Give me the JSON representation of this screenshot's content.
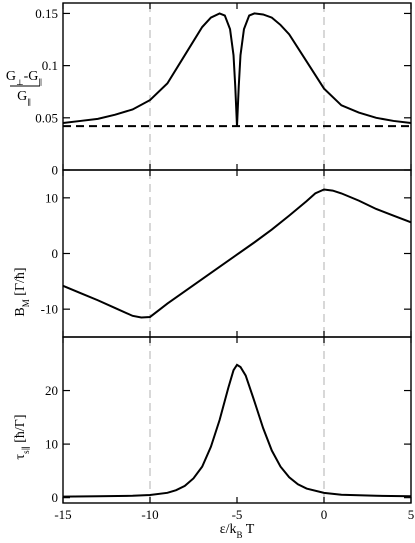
{
  "chart_data": [
    {
      "type": "line",
      "ylabel": "G⊥-G∥ / G∥",
      "xlim": [
        -15,
        5
      ],
      "ylim": [
        0.0,
        0.16
      ],
      "yticks": [
        0,
        0.05,
        0.1,
        0.15
      ],
      "ytick_labels": [
        "0",
        "0.05",
        "0.1",
        "0.15"
      ],
      "vertical_reference_lines": [
        -10,
        0
      ],
      "series": [
        {
          "style": "solid",
          "x": [
            -15,
            -14,
            -13,
            -12,
            -11,
            -10,
            -9,
            -8,
            -7,
            -6.5,
            -6,
            -5.7,
            -5.4,
            -5.2,
            -5.1,
            -5.0,
            -4.9,
            -4.8,
            -4.6,
            -4.3,
            -4,
            -3.5,
            -3,
            -2.5,
            -2,
            -1,
            0,
            1,
            2,
            3,
            4,
            5
          ],
          "y": [
            0.045,
            0.047,
            0.049,
            0.053,
            0.058,
            0.067,
            0.083,
            0.11,
            0.137,
            0.146,
            0.15,
            0.148,
            0.135,
            0.11,
            0.08,
            0.042,
            0.08,
            0.11,
            0.135,
            0.148,
            0.15,
            0.149,
            0.146,
            0.139,
            0.13,
            0.104,
            0.078,
            0.062,
            0.055,
            0.05,
            0.047,
            0.045
          ]
        },
        {
          "style": "dashed",
          "x": [
            -15,
            5
          ],
          "y": [
            0.042,
            0.042
          ]
        }
      ]
    },
    {
      "type": "line",
      "ylabel": "B_M [Γ/ħ]",
      "xlim": [
        -15,
        5
      ],
      "ylim": [
        -15,
        15
      ],
      "yticks": [
        -10,
        0,
        10
      ],
      "ytick_labels": [
        "-10",
        "0",
        "10"
      ],
      "vertical_reference_lines": [
        -10,
        0
      ],
      "series": [
        {
          "style": "solid",
          "x": [
            -15,
            -14,
            -13,
            -12,
            -11,
            -10.5,
            -10,
            -9.5,
            -9,
            -8,
            -7,
            -6,
            -5,
            -4,
            -3,
            -2,
            -1,
            -0.5,
            0,
            0.5,
            1,
            2,
            3,
            4,
            5
          ],
          "y": [
            -5.8,
            -7.1,
            -8.4,
            -9.8,
            -11.2,
            -11.5,
            -11.4,
            -10.2,
            -9.0,
            -6.8,
            -4.6,
            -2.4,
            -0.2,
            2.0,
            4.3,
            6.8,
            9.4,
            10.8,
            11.5,
            11.3,
            10.8,
            9.5,
            8.0,
            6.8,
            5.6
          ]
        }
      ]
    },
    {
      "type": "line",
      "ylabel": "τ_s∥ [ħ/Γ]",
      "xlabel": "ε/k_B T",
      "xlim": [
        -15,
        5
      ],
      "ylim": [
        -1,
        30
      ],
      "xticks": [
        -15,
        -10,
        -5,
        0,
        5
      ],
      "xtick_labels": [
        "-15",
        "-10",
        "-5",
        "0",
        "5"
      ],
      "yticks": [
        0,
        10,
        20
      ],
      "ytick_labels": [
        "0",
        "10",
        "20"
      ],
      "vertical_reference_lines": [
        -10,
        0
      ],
      "series": [
        {
          "style": "solid",
          "x": [
            -15,
            -13,
            -11,
            -10,
            -9,
            -8.5,
            -8,
            -7.5,
            -7,
            -6.5,
            -6,
            -5.5,
            -5.2,
            -5,
            -4.8,
            -4.5,
            -4,
            -3.5,
            -3,
            -2.5,
            -2,
            -1.5,
            -1,
            0,
            1,
            3,
            5
          ],
          "y": [
            0.2,
            0.25,
            0.35,
            0.5,
            0.9,
            1.4,
            2.2,
            3.6,
            5.8,
            9.5,
            14.5,
            20.5,
            23.8,
            24.8,
            24.4,
            22.8,
            18.0,
            13.0,
            8.8,
            5.8,
            3.8,
            2.5,
            1.7,
            0.9,
            0.55,
            0.35,
            0.25
          ]
        }
      ]
    }
  ]
}
